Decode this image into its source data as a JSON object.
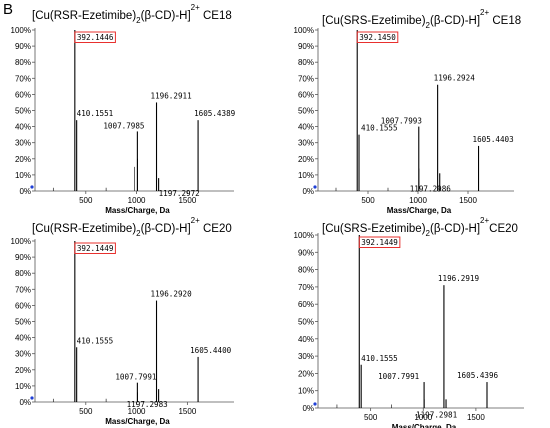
{
  "figure": {
    "panel_label": "B"
  },
  "chart_data": [
    {
      "type": "bar",
      "title": {
        "main": "[Cu(RSR-Ezetimibe)",
        "sub2": "2",
        "mid": "(β-CD)-H]",
        "sup": "2+",
        "tail": " CE18"
      },
      "xlabel": "Mass/Charge, Da",
      "ylabel": "",
      "xlim": [
        0,
        1900
      ],
      "ylim": [
        0,
        100
      ],
      "xticks": [
        500,
        1000,
        1500
      ],
      "xtick_labels": [
        "500",
        "1000",
        "1500"
      ],
      "yticks": [
        0,
        10,
        20,
        30,
        40,
        50,
        60,
        70,
        80,
        90,
        100
      ],
      "ytick_labels": [
        "0%",
        "10%",
        "20%",
        "30%",
        "40%",
        "50%",
        "60%",
        "70%",
        "80%",
        "90%",
        "100%"
      ],
      "peaks": [
        {
          "mz": 392.1446,
          "intensity": 100,
          "label": "392.1446",
          "boxed": true
        },
        {
          "mz": 410.1551,
          "intensity": 44,
          "label": "410.1551",
          "boxed": false
        },
        {
          "mz": 1007.7985,
          "intensity": 37,
          "label": "1007.7985",
          "boxed": false
        },
        {
          "mz": 1196.2911,
          "intensity": 55,
          "label": "1196.2911",
          "boxed": false
        },
        {
          "mz": 1197.2972,
          "intensity": 8,
          "label": "1197.2972",
          "boxed": false
        },
        {
          "mz": 1605.4389,
          "intensity": 44,
          "label": "1605.4389",
          "boxed": false
        }
      ],
      "minor_peaks": [
        [
          180,
          2
        ],
        [
          700,
          2
        ],
        [
          980,
          15
        ],
        [
          1010,
          20
        ]
      ]
    },
    {
      "type": "bar",
      "title": {
        "main": "[Cu(SRS-Ezetimibe)",
        "sub2": "2",
        "mid": "(β-CD)-H]",
        "sup": "2+",
        "tail": " CE18"
      },
      "xlabel": "Mass/Charge, Da",
      "ylabel": "",
      "xlim": [
        0,
        1900
      ],
      "ylim": [
        0,
        100
      ],
      "xticks": [
        500,
        1000,
        1500
      ],
      "xtick_labels": [
        "500",
        "1000",
        "1500"
      ],
      "yticks": [
        0,
        10,
        20,
        30,
        40,
        50,
        60,
        70,
        80,
        90,
        100
      ],
      "ytick_labels": [
        "0%",
        "10%",
        "20%",
        "30%",
        "40%",
        "50%",
        "60%",
        "70%",
        "80%",
        "90%",
        "100%"
      ],
      "peaks": [
        {
          "mz": 392.145,
          "intensity": 100,
          "label": "392.1450",
          "boxed": true
        },
        {
          "mz": 410.1555,
          "intensity": 35,
          "label": "410.1555",
          "boxed": false
        },
        {
          "mz": 1007.7993,
          "intensity": 40,
          "label": "1007.7993",
          "boxed": false
        },
        {
          "mz": 1196.2924,
          "intensity": 66,
          "label": "1196.2924",
          "boxed": false
        },
        {
          "mz": 1197.2986,
          "intensity": 11,
          "label": "1197.2986",
          "boxed": false
        },
        {
          "mz": 1605.4403,
          "intensity": 28,
          "label": "1605.4403",
          "boxed": false
        }
      ],
      "minor_peaks": [
        [
          180,
          2
        ],
        [
          700,
          2
        ],
        [
          1010,
          14
        ]
      ]
    },
    {
      "type": "bar",
      "title": {
        "main": "[Cu(RSR-Ezetimibe)",
        "sub2": "2",
        "mid": "(β-CD)-H]",
        "sup": "2+",
        "tail": " CE20"
      },
      "xlabel": "Mass/Charge, Da",
      "ylabel": "",
      "xlim": [
        0,
        1900
      ],
      "ylim": [
        0,
        100
      ],
      "xticks": [
        500,
        1000,
        1500
      ],
      "xtick_labels": [
        "500",
        "1000",
        "1500"
      ],
      "yticks": [
        0,
        10,
        20,
        30,
        40,
        50,
        60,
        70,
        80,
        90,
        100
      ],
      "ytick_labels": [
        "0%",
        "10%",
        "20%",
        "30%",
        "40%",
        "50%",
        "60%",
        "70%",
        "80%",
        "90%",
        "100%"
      ],
      "peaks": [
        {
          "mz": 392.1449,
          "intensity": 100,
          "label": "392.1449",
          "boxed": true
        },
        {
          "mz": 410.1555,
          "intensity": 34,
          "label": "410.1555",
          "boxed": false
        },
        {
          "mz": 1007.7991,
          "intensity": 12,
          "label": "1007.7991",
          "boxed": false
        },
        {
          "mz": 1196.292,
          "intensity": 63,
          "label": "1196.2920",
          "boxed": false
        },
        {
          "mz": 1197.2983,
          "intensity": 8,
          "label": "1197.2983",
          "boxed": false
        },
        {
          "mz": 1605.44,
          "intensity": 28,
          "label": "1605.4400",
          "boxed": false
        }
      ],
      "minor_peaks": [
        [
          180,
          2
        ],
        [
          700,
          2
        ],
        [
          1010,
          6
        ]
      ]
    },
    {
      "type": "bar",
      "title": {
        "main": "[Cu(SRS-Ezetimibe)",
        "sub2": "2",
        "mid": "(β-CD)-H]",
        "sup": "2+",
        "tail": "CE20"
      },
      "xlabel": "Mass/Charge, Da",
      "ylabel": "",
      "xlim": [
        0,
        1900
      ],
      "ylim": [
        0,
        100
      ],
      "xticks": [
        500,
        1000,
        1500
      ],
      "xtick_labels": [
        "500",
        "1000",
        "1500"
      ],
      "yticks": [
        0,
        10,
        20,
        30,
        40,
        50,
        60,
        70,
        80,
        90,
        100
      ],
      "ytick_labels": [
        "0%",
        "10%",
        "20%",
        "30%",
        "40%",
        "50%",
        "60%",
        "70%",
        "80%",
        "90%",
        "100%"
      ],
      "peaks": [
        {
          "mz": 392.1449,
          "intensity": 100,
          "label": "392.1449",
          "boxed": true
        },
        {
          "mz": 410.1555,
          "intensity": 25,
          "label": "410.1555",
          "boxed": false
        },
        {
          "mz": 1007.7991,
          "intensity": 15,
          "label": "1007.7991",
          "boxed": false
        },
        {
          "mz": 1196.2919,
          "intensity": 71,
          "label": "1196.2919",
          "boxed": false
        },
        {
          "mz": 1197.2981,
          "intensity": 5,
          "label": "1197.2981",
          "boxed": false
        },
        {
          "mz": 1605.4396,
          "intensity": 15,
          "label": "1605.4396",
          "boxed": false
        }
      ],
      "minor_peaks": [
        [
          180,
          2
        ],
        [
          700,
          2
        ],
        [
          1010,
          5
        ]
      ]
    }
  ]
}
